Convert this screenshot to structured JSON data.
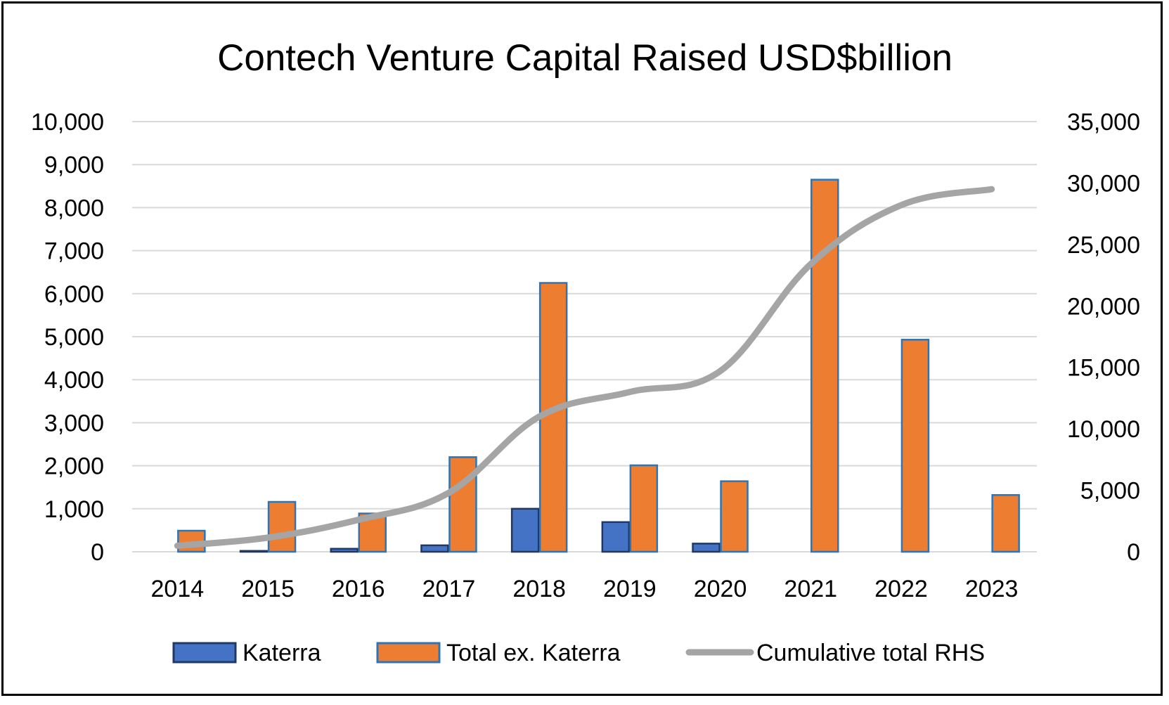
{
  "chart_data": {
    "type": "bar",
    "title": "Contech Venture Capital Raised USD$billion",
    "categories": [
      "2014",
      "2015",
      "2016",
      "2017",
      "2018",
      "2019",
      "2020",
      "2021",
      "2022",
      "2023"
    ],
    "series": [
      {
        "name": "Katerra",
        "type": "bar",
        "axis": "left",
        "color": "#4472c4",
        "values": [
          0,
          20,
          70,
          150,
          1000,
          690,
          190,
          0,
          0,
          0
        ]
      },
      {
        "name": "Total ex. Katerra",
        "type": "bar",
        "axis": "left",
        "color": "#ed7d31",
        "values": [
          490,
          1160,
          890,
          2200,
          6250,
          2010,
          1640,
          8650,
          4930,
          1320
        ]
      },
      {
        "name": "Cumulative total RHS",
        "type": "line",
        "axis": "right",
        "color": "#a5a5a5",
        "values": [
          490,
          1150,
          2600,
          4800,
          11000,
          13000,
          14700,
          23400,
          28200,
          29500
        ]
      }
    ],
    "y_left": {
      "min": 0,
      "max": 10000,
      "step": 1000,
      "tick_labels": [
        "0",
        "1,000",
        "2,000",
        "3,000",
        "4,000",
        "5,000",
        "6,000",
        "7,000",
        "8,000",
        "9,000",
        "10,000"
      ]
    },
    "y_right": {
      "min": 0,
      "max": 35000,
      "step": 5000,
      "tick_labels": [
        "0",
        "5,000",
        "10,000",
        "15,000",
        "20,000",
        "25,000",
        "30,000",
        "35,000"
      ]
    },
    "grid": true,
    "legend_position": "bottom"
  }
}
